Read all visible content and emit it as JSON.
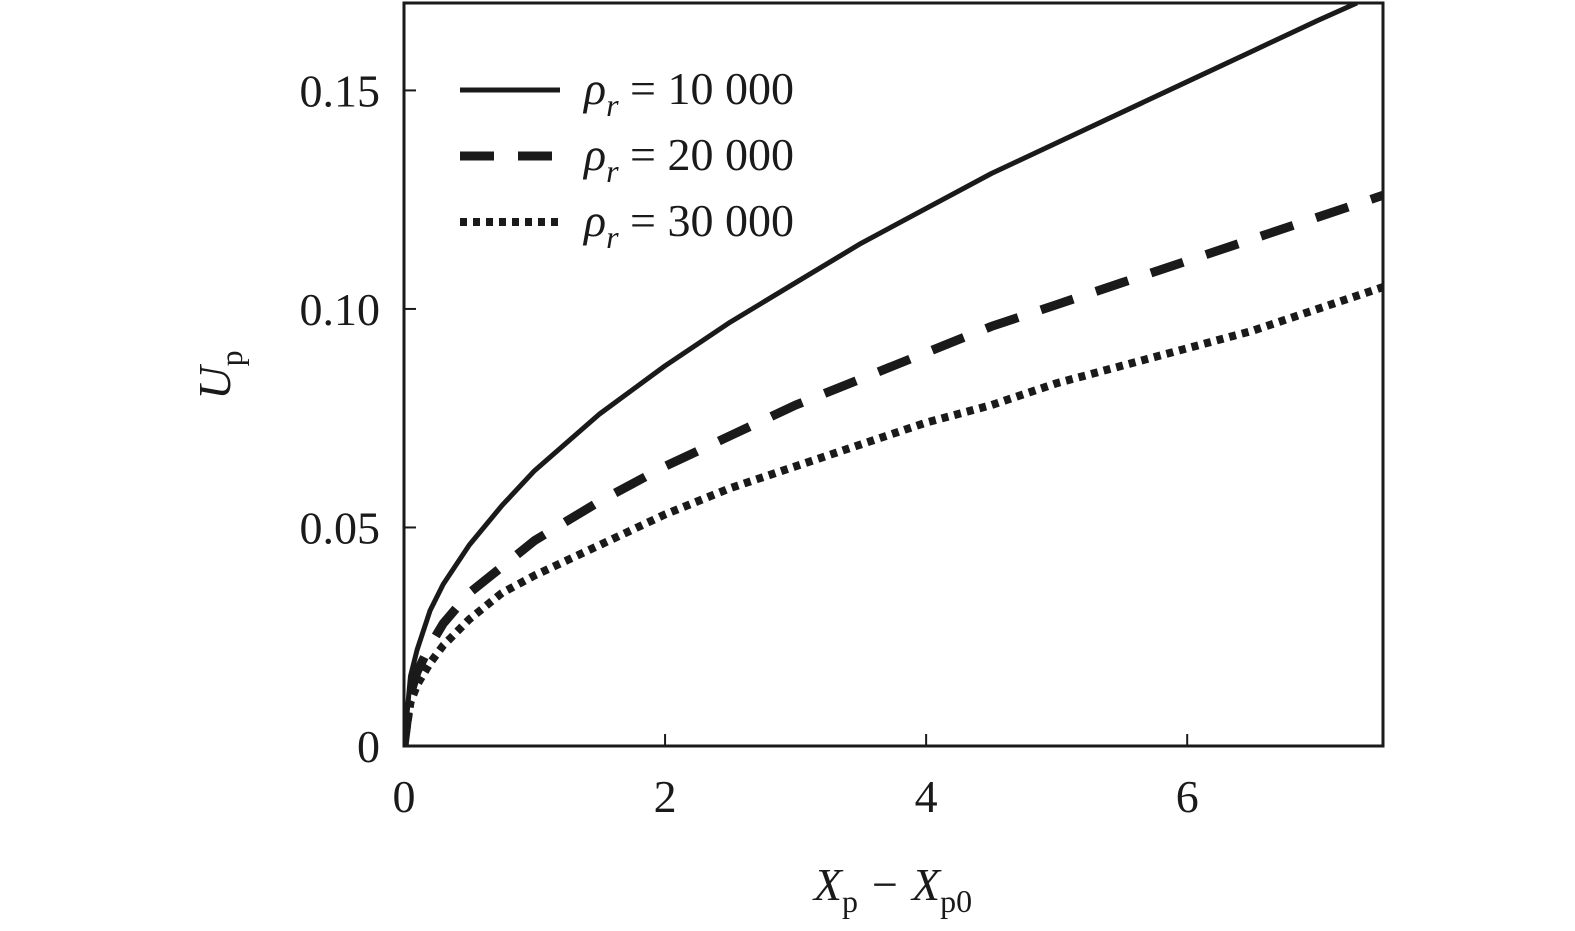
{
  "chart_data": {
    "type": "line",
    "title": "",
    "xlabel": {
      "main": "X",
      "sub": "p",
      "operator": "−",
      "main2": "X",
      "sub2": "p0"
    },
    "ylabel": {
      "main": "U",
      "sub": "p"
    },
    "xlim": [
      0,
      7.5
    ],
    "ylim": [
      0,
      0.17
    ],
    "xticks": [
      0,
      2,
      4,
      6
    ],
    "xtick_labels": [
      "0",
      "2",
      "4",
      "6"
    ],
    "yticks": [
      0,
      0.05,
      0.1,
      0.15
    ],
    "ytick_labels": [
      "0",
      "0.05",
      "0.10",
      "0.15"
    ],
    "grid": false,
    "legend_position": "top-left",
    "series": [
      {
        "name": "ρr = 10 000",
        "legend": {
          "symbol": "ρ",
          "sub": "r",
          "text": " = 10 000"
        },
        "style": "solid",
        "color": "#1a1a1a",
        "x": [
          0,
          0.05,
          0.1,
          0.2,
          0.3,
          0.5,
          0.75,
          1,
          1.5,
          2,
          2.5,
          3,
          3.5,
          4,
          4.5,
          5,
          5.5,
          6,
          6.5,
          7,
          7.3
        ],
        "y": [
          0,
          0.016,
          0.022,
          0.031,
          0.037,
          0.046,
          0.055,
          0.063,
          0.076,
          0.087,
          0.097,
          0.106,
          0.115,
          0.123,
          0.131,
          0.138,
          0.145,
          0.152,
          0.159,
          0.166,
          0.17
        ]
      },
      {
        "name": "ρr = 20 000",
        "legend": {
          "symbol": "ρ",
          "sub": "r",
          "text": " = 20 000"
        },
        "style": "dashed",
        "color": "#1a1a1a",
        "x": [
          0,
          0.05,
          0.1,
          0.2,
          0.3,
          0.5,
          0.75,
          1,
          1.5,
          2,
          2.5,
          3,
          3.5,
          4,
          4.5,
          5,
          5.5,
          6,
          6.5,
          7,
          7.5
        ],
        "y": [
          0,
          0.012,
          0.017,
          0.023,
          0.028,
          0.035,
          0.041,
          0.047,
          0.056,
          0.064,
          0.071,
          0.078,
          0.084,
          0.09,
          0.096,
          0.101,
          0.106,
          0.111,
          0.116,
          0.121,
          0.126
        ]
      },
      {
        "name": "ρr = 30 000",
        "legend": {
          "symbol": "ρ",
          "sub": "r",
          "text": " = 30 000"
        },
        "style": "dotted",
        "color": "#1a1a1a",
        "x": [
          0,
          0.05,
          0.1,
          0.2,
          0.3,
          0.5,
          0.75,
          1,
          1.5,
          2,
          2.5,
          3,
          3.5,
          4,
          4.5,
          5,
          5.5,
          6,
          6.5,
          7,
          7.5
        ],
        "y": [
          0,
          0.01,
          0.014,
          0.019,
          0.023,
          0.029,
          0.035,
          0.039,
          0.046,
          0.053,
          0.059,
          0.064,
          0.069,
          0.074,
          0.078,
          0.083,
          0.087,
          0.091,
          0.095,
          0.1,
          0.105
        ]
      }
    ]
  }
}
